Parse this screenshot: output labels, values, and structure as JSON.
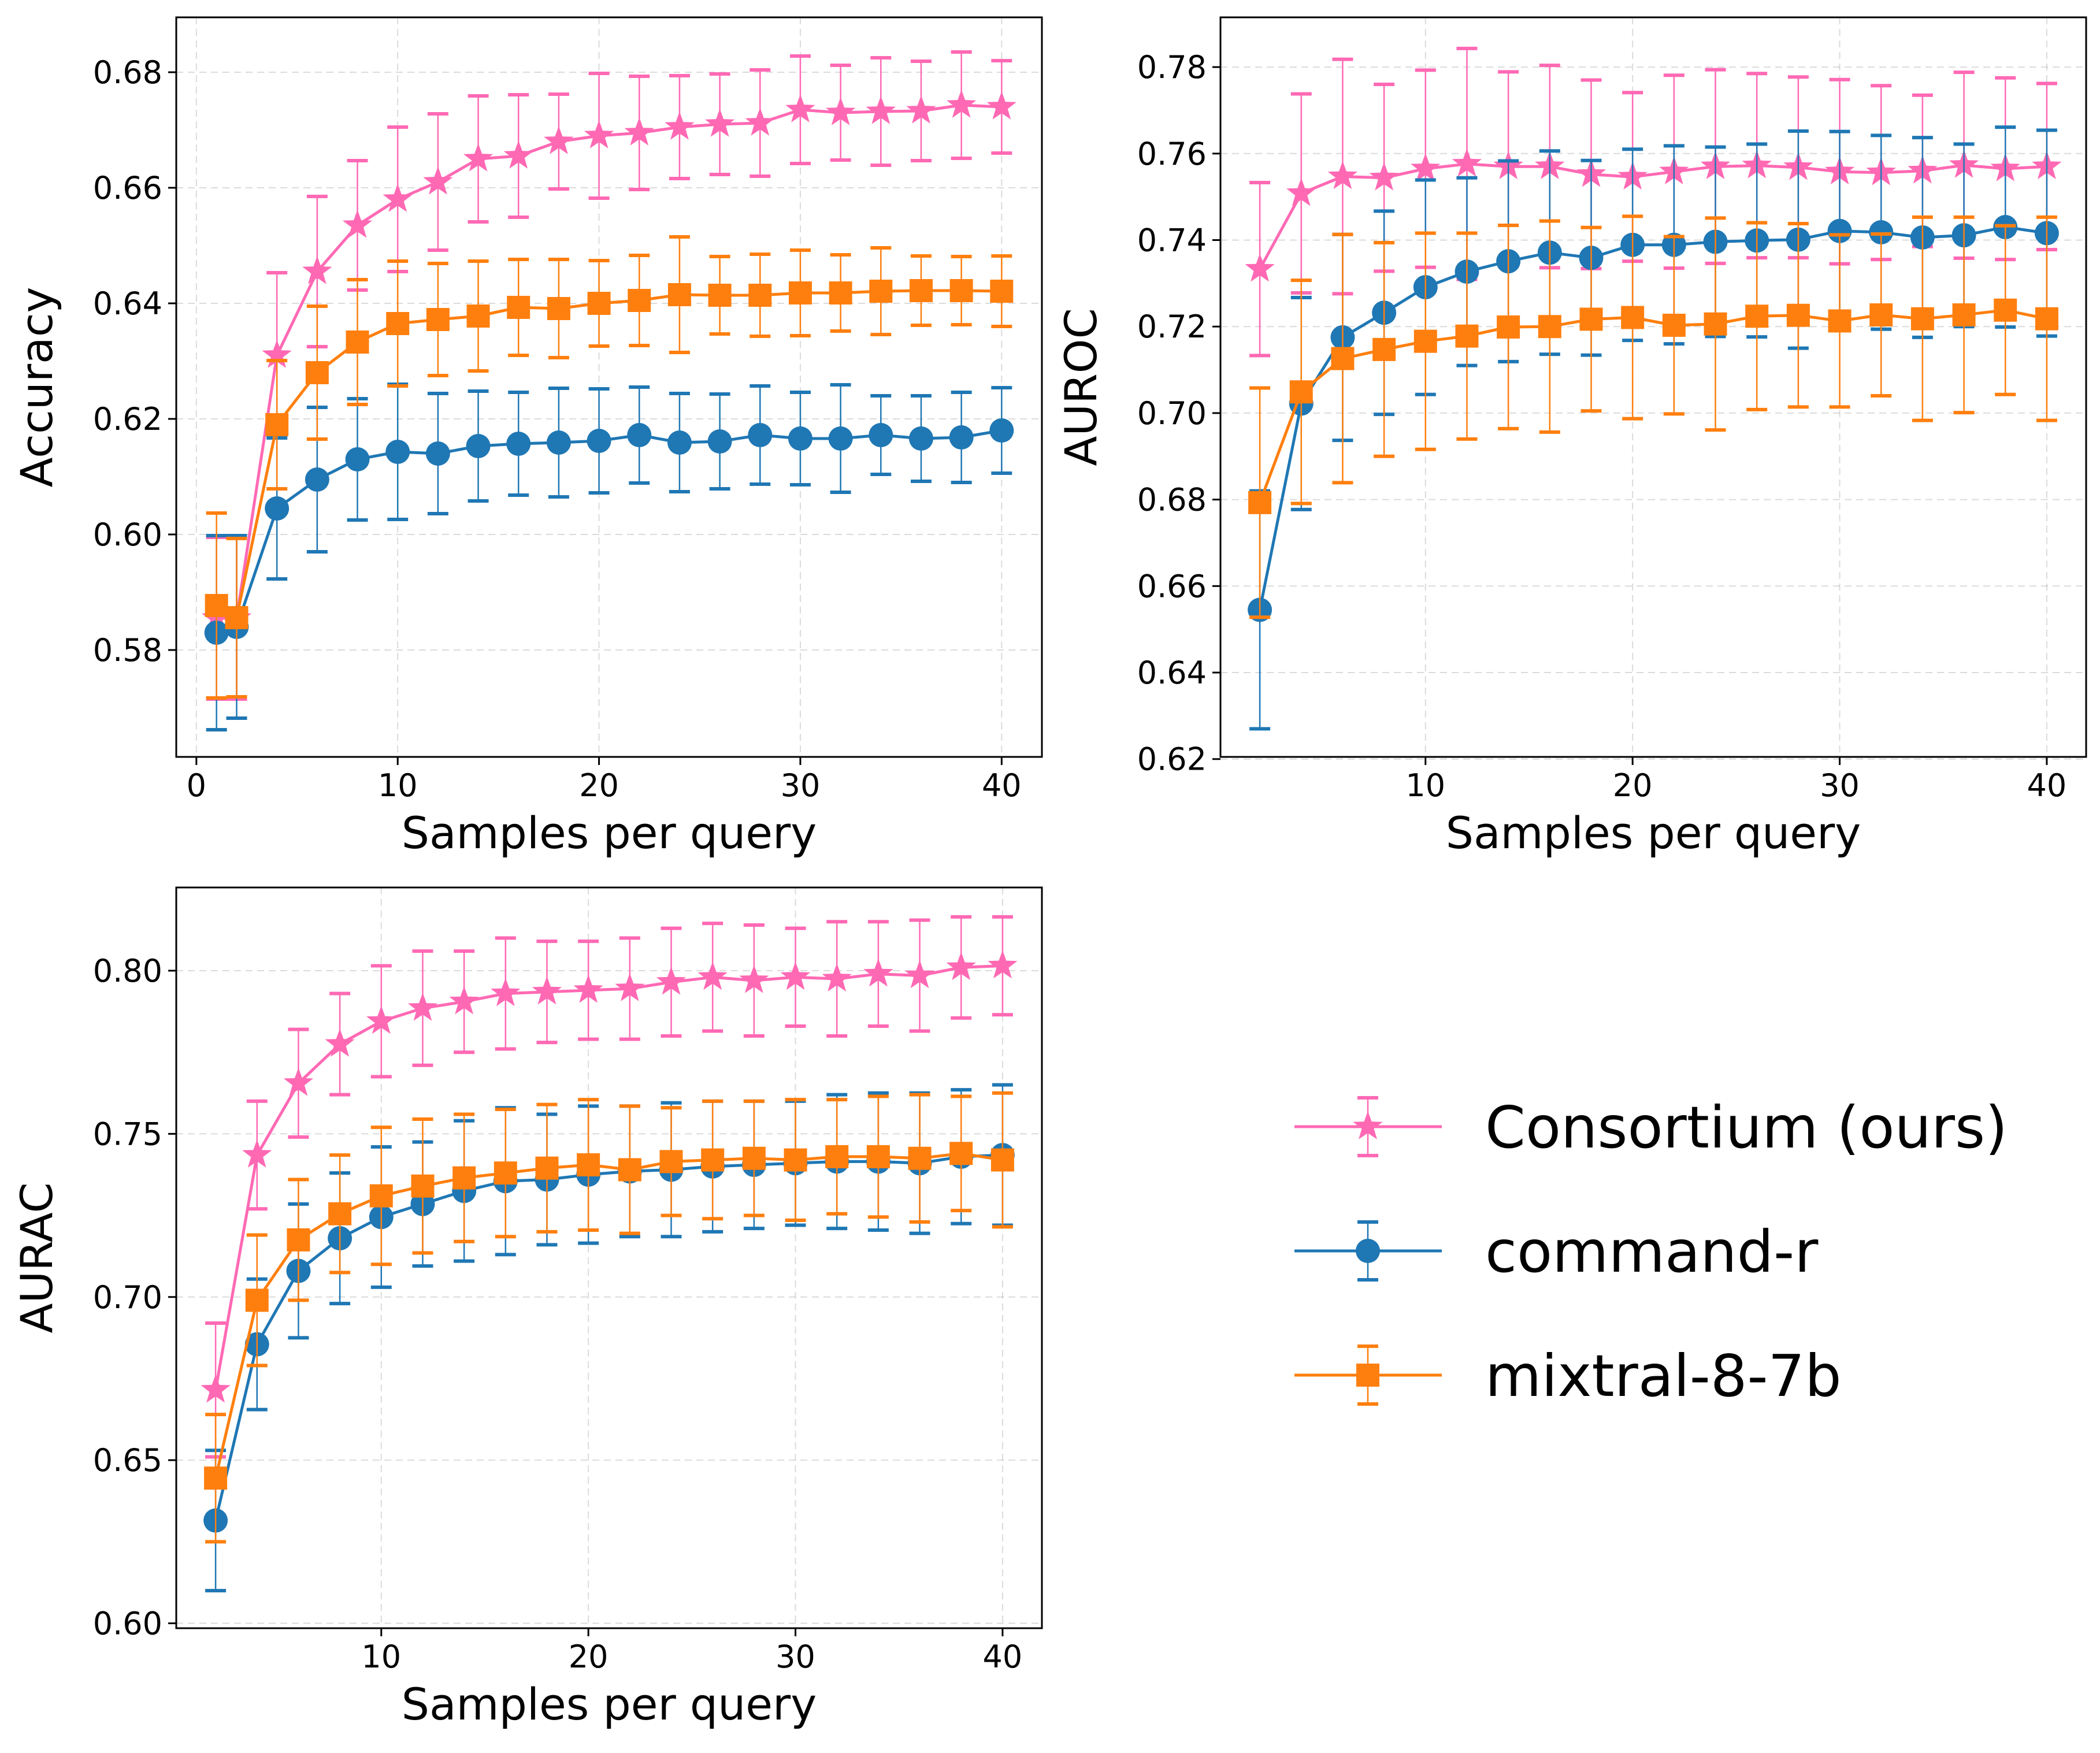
{
  "chart_data": [
    {
      "type": "line",
      "xlabel": "Samples per query",
      "ylabel": "Accuracy",
      "xlim": [
        -1,
        42
      ],
      "ylim": [
        0.5615,
        0.6895
      ],
      "xticks": [
        0,
        10,
        20,
        30,
        40
      ],
      "yticks": [
        0.58,
        0.6,
        0.62,
        0.64,
        0.66,
        0.68
      ],
      "ytick_decimals": 2,
      "grid": true,
      "series": [
        {
          "name": "Consortium (ours)",
          "color": "#ff69b4",
          "marker": "star",
          "x": [
            1,
            2,
            4,
            6,
            8,
            10,
            12,
            14,
            16,
            18,
            20,
            22,
            24,
            26,
            28,
            30,
            32,
            34,
            36,
            38,
            40
          ],
          "y": [
            0.5855,
            0.5855,
            0.631,
            0.6455,
            0.6535,
            0.658,
            0.661,
            0.665,
            0.6655,
            0.668,
            0.669,
            0.6695,
            0.6705,
            0.671,
            0.6712,
            0.6735,
            0.673,
            0.6732,
            0.6733,
            0.6743,
            0.674
          ],
          "err": [
            0.014,
            0.014,
            0.0143,
            0.013,
            0.0112,
            0.0125,
            0.0118,
            0.0109,
            0.0106,
            0.0082,
            0.0108,
            0.0098,
            0.0089,
            0.0087,
            0.0092,
            0.0093,
            0.0082,
            0.0093,
            0.0086,
            0.0092,
            0.008
          ]
        },
        {
          "name": "command-r",
          "color": "#1f77b4",
          "marker": "circle",
          "x": [
            1,
            2,
            4,
            6,
            8,
            10,
            12,
            14,
            16,
            18,
            20,
            22,
            24,
            26,
            28,
            30,
            32,
            34,
            36,
            38,
            40
          ],
          "y": [
            0.583,
            0.584,
            0.6045,
            0.6095,
            0.613,
            0.6143,
            0.614,
            0.6153,
            0.6157,
            0.6159,
            0.6162,
            0.6172,
            0.6159,
            0.6161,
            0.6172,
            0.6166,
            0.6166,
            0.6172,
            0.6166,
            0.6168,
            0.618
          ],
          "err": [
            0.0168,
            0.0158,
            0.0122,
            0.0125,
            0.0105,
            0.0117,
            0.0104,
            0.0095,
            0.0089,
            0.0094,
            0.009,
            0.0083,
            0.0085,
            0.0082,
            0.0085,
            0.008,
            0.0093,
            0.0068,
            0.0074,
            0.0078,
            0.0074
          ]
        },
        {
          "name": "mixtral-8-7b",
          "color": "#ff7f0e",
          "marker": "square",
          "x": [
            1,
            2,
            4,
            6,
            8,
            10,
            12,
            14,
            16,
            18,
            20,
            22,
            24,
            26,
            28,
            30,
            32,
            34,
            36,
            38,
            40
          ],
          "y": [
            0.5877,
            0.5856,
            0.619,
            0.628,
            0.6333,
            0.6365,
            0.6372,
            0.6378,
            0.6393,
            0.6391,
            0.64,
            0.6405,
            0.6415,
            0.6414,
            0.6414,
            0.6418,
            0.6418,
            0.6421,
            0.6422,
            0.6422,
            0.6421
          ],
          "err": [
            0.016,
            0.0137,
            0.0111,
            0.0115,
            0.0108,
            0.0108,
            0.0097,
            0.0095,
            0.0083,
            0.0085,
            0.0074,
            0.0078,
            0.01,
            0.0067,
            0.0071,
            0.0074,
            0.0066,
            0.0075,
            0.006,
            0.0059,
            0.0061
          ]
        }
      ]
    },
    {
      "type": "line",
      "xlabel": "Samples per query",
      "ylabel": "AUROC",
      "xlim": [
        0.1,
        41.9
      ],
      "ylim": [
        0.6205,
        0.7915
      ],
      "xticks": [
        10,
        20,
        30,
        40
      ],
      "yticks": [
        0.62,
        0.64,
        0.66,
        0.68,
        0.7,
        0.72,
        0.74,
        0.76,
        0.78
      ],
      "ytick_decimals": 2,
      "grid": true,
      "series": [
        {
          "name": "Consortium (ours)",
          "color": "#ff69b4",
          "marker": "star",
          "x": [
            2,
            4,
            6,
            8,
            10,
            12,
            14,
            16,
            18,
            20,
            22,
            24,
            26,
            28,
            30,
            32,
            34,
            36,
            38,
            40
          ],
          "y": [
            0.7333,
            0.7508,
            0.7547,
            0.7544,
            0.7565,
            0.7576,
            0.757,
            0.757,
            0.7552,
            0.7546,
            0.7558,
            0.757,
            0.7572,
            0.7568,
            0.7558,
            0.7556,
            0.756,
            0.7573,
            0.7565,
            0.757
          ],
          "err": [
            0.02,
            0.023,
            0.0271,
            0.0216,
            0.0228,
            0.0267,
            0.0219,
            0.0234,
            0.0218,
            0.0195,
            0.0223,
            0.0224,
            0.0213,
            0.0209,
            0.0213,
            0.0201,
            0.0175,
            0.0215,
            0.021,
            0.0192
          ]
        },
        {
          "name": "command-r",
          "color": "#1f77b4",
          "marker": "circle",
          "x": [
            2,
            4,
            6,
            8,
            10,
            12,
            14,
            16,
            18,
            20,
            22,
            24,
            26,
            28,
            30,
            32,
            34,
            36,
            38,
            40
          ],
          "y": [
            0.6545,
            0.7022,
            0.7175,
            0.7232,
            0.7291,
            0.7327,
            0.7351,
            0.7371,
            0.7359,
            0.7389,
            0.7389,
            0.7396,
            0.7399,
            0.7401,
            0.7421,
            0.7418,
            0.7406,
            0.7411,
            0.743,
            0.7416
          ],
          "err": [
            0.0275,
            0.0245,
            0.0238,
            0.0235,
            0.0248,
            0.0217,
            0.0232,
            0.0235,
            0.0225,
            0.0221,
            0.0229,
            0.0219,
            0.0223,
            0.0251,
            0.023,
            0.0224,
            0.0231,
            0.0211,
            0.0231,
            0.0238
          ]
        },
        {
          "name": "mixtral-8-7b",
          "color": "#ff7f0e",
          "marker": "square",
          "x": [
            2,
            4,
            6,
            8,
            10,
            12,
            14,
            16,
            18,
            20,
            22,
            24,
            26,
            28,
            30,
            32,
            34,
            36,
            38,
            40
          ],
          "y": [
            0.6793,
            0.7049,
            0.7126,
            0.7147,
            0.7166,
            0.7178,
            0.7199,
            0.72,
            0.7217,
            0.7221,
            0.7203,
            0.7206,
            0.7224,
            0.7226,
            0.7213,
            0.7227,
            0.7218,
            0.7227,
            0.7238,
            0.7218
          ],
          "err": [
            0.0265,
            0.0258,
            0.0287,
            0.0247,
            0.025,
            0.0238,
            0.0235,
            0.0244,
            0.0212,
            0.0234,
            0.0205,
            0.0245,
            0.0216,
            0.0212,
            0.0199,
            0.0187,
            0.0235,
            0.0226,
            0.0195,
            0.0235
          ]
        }
      ]
    },
    {
      "type": "line",
      "xlabel": "Samples per query",
      "ylabel": "AURAC",
      "xlim": [
        0.1,
        41.9
      ],
      "ylim": [
        0.5985,
        0.8255
      ],
      "xticks": [
        10,
        20,
        30,
        40
      ],
      "yticks": [
        0.6,
        0.65,
        0.7,
        0.75,
        0.8
      ],
      "ytick_decimals": 2,
      "grid": true,
      "series": [
        {
          "name": "Consortium (ours)",
          "color": "#ff69b4",
          "marker": "star",
          "x": [
            2,
            4,
            6,
            8,
            10,
            12,
            14,
            16,
            18,
            20,
            22,
            24,
            26,
            28,
            30,
            32,
            34,
            36,
            38,
            40
          ],
          "y": [
            0.6715,
            0.7435,
            0.7655,
            0.7775,
            0.7845,
            0.7885,
            0.7905,
            0.793,
            0.7935,
            0.794,
            0.7945,
            0.7965,
            0.798,
            0.797,
            0.798,
            0.7975,
            0.799,
            0.7985,
            0.801,
            0.8015
          ],
          "err": [
            0.0205,
            0.0165,
            0.0165,
            0.0155,
            0.017,
            0.0175,
            0.0155,
            0.017,
            0.0155,
            0.015,
            0.0155,
            0.0165,
            0.0165,
            0.017,
            0.015,
            0.0175,
            0.016,
            0.017,
            0.0155,
            0.015
          ]
        },
        {
          "name": "command-r",
          "color": "#1f77b4",
          "marker": "circle",
          "x": [
            2,
            4,
            6,
            8,
            10,
            12,
            14,
            16,
            18,
            20,
            22,
            24,
            26,
            28,
            30,
            32,
            34,
            36,
            38,
            40
          ],
          "y": [
            0.6315,
            0.6855,
            0.708,
            0.718,
            0.7245,
            0.7285,
            0.7325,
            0.7355,
            0.736,
            0.7375,
            0.7385,
            0.739,
            0.74,
            0.7405,
            0.741,
            0.7415,
            0.7415,
            0.741,
            0.743,
            0.7435
          ],
          "err": [
            0.0215,
            0.02,
            0.0205,
            0.02,
            0.0215,
            0.019,
            0.0215,
            0.0225,
            0.02,
            0.021,
            0.02,
            0.0205,
            0.02,
            0.0195,
            0.019,
            0.0205,
            0.021,
            0.0215,
            0.0205,
            0.0215
          ]
        },
        {
          "name": "mixtral-8-7b",
          "color": "#ff7f0e",
          "marker": "square",
          "x": [
            2,
            4,
            6,
            8,
            10,
            12,
            14,
            16,
            18,
            20,
            22,
            24,
            26,
            28,
            30,
            32,
            34,
            36,
            38,
            40
          ],
          "y": [
            0.6445,
            0.699,
            0.7175,
            0.7255,
            0.731,
            0.734,
            0.7365,
            0.738,
            0.7395,
            0.7405,
            0.739,
            0.7415,
            0.742,
            0.7425,
            0.742,
            0.743,
            0.743,
            0.7425,
            0.744,
            0.742
          ],
          "err": [
            0.0195,
            0.02,
            0.0185,
            0.018,
            0.021,
            0.0205,
            0.0195,
            0.0195,
            0.0195,
            0.02,
            0.0195,
            0.0165,
            0.018,
            0.0175,
            0.0185,
            0.0175,
            0.0185,
            0.0195,
            0.0175,
            0.0205
          ]
        }
      ]
    }
  ],
  "legend": {
    "placement": "lower-right",
    "entries": [
      {
        "label": "Consortium (ours)",
        "color": "#ff69b4",
        "marker": "star"
      },
      {
        "label": "command-r",
        "color": "#1f77b4",
        "marker": "circle"
      },
      {
        "label": "mixtral-8-7b",
        "color": "#ff7f0e",
        "marker": "square"
      }
    ]
  }
}
